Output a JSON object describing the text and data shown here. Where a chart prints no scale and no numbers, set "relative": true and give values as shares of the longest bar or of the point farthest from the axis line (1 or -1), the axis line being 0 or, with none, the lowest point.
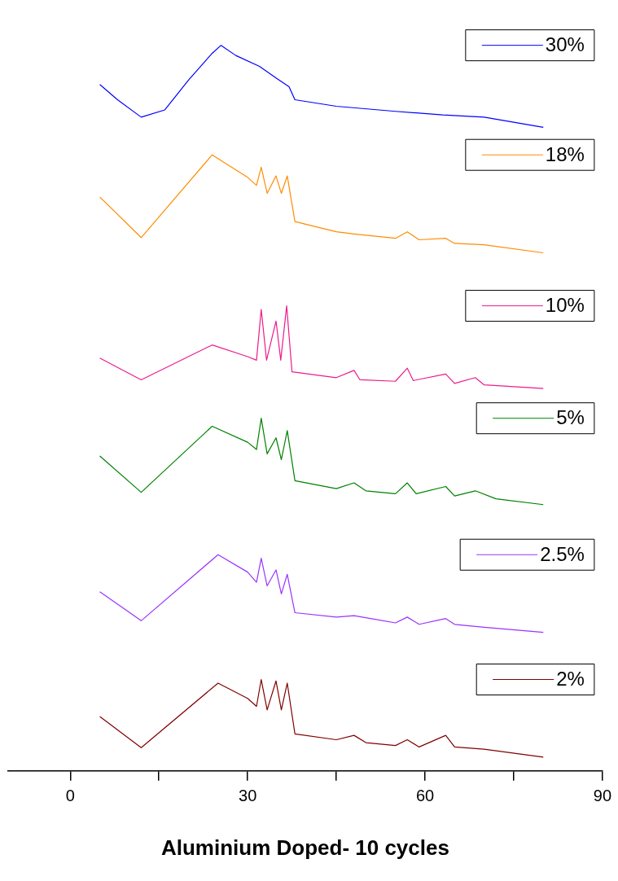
{
  "chart_data": {
    "type": "line",
    "relative": true,
    "xlabel": "Aluminium Doped- 10 cycles",
    "xlim": [
      -10.5,
      90
    ],
    "xticks": [
      0,
      {
        "value": 15,
        "label": null
      },
      30,
      {
        "value": 45,
        "label": null
      },
      60,
      {
        "value": 75,
        "label": null
      },
      90
    ],
    "tick_labels": "x",
    "grid": false,
    "legend": "right",
    "marker": "none",
    "line_style": "solid",
    "series": [
      {
        "name": "30%",
        "color": "#0000ff",
        "x": [
          5,
          8,
          12,
          16,
          20,
          24,
          25.5,
          28,
          32,
          35,
          37,
          38,
          45,
          55,
          63,
          70,
          80
        ],
        "values": [
          0.946,
          0.925,
          0.901,
          0.911,
          0.952,
          0.989,
          1.0,
          0.986,
          0.971,
          0.954,
          0.943,
          0.925,
          0.916,
          0.909,
          0.904,
          0.901,
          0.887
        ]
      },
      {
        "name": "18%",
        "color": "#ff8c00",
        "x": [
          5,
          12,
          24,
          30,
          31.5,
          32.3,
          33.3,
          34.8,
          35.7,
          36.7,
          38,
          45,
          48,
          55,
          57,
          59,
          63.5,
          65,
          70,
          80
        ],
        "values": [
          0.791,
          0.735,
          0.849,
          0.818,
          0.807,
          0.832,
          0.796,
          0.82,
          0.796,
          0.82,
          0.757,
          0.743,
          0.74,
          0.734,
          0.743,
          0.732,
          0.734,
          0.727,
          0.725,
          0.714
        ]
      },
      {
        "name": "10%",
        "color": "#ec1c8c",
        "x": [
          5,
          12,
          24,
          30,
          31.5,
          32.3,
          33.2,
          34.8,
          35.6,
          36.6,
          37.5,
          45,
          48,
          49,
          55,
          57,
          58,
          63.5,
          65,
          68.5,
          70,
          80
        ],
        "values": [
          0.569,
          0.539,
          0.587,
          0.571,
          0.566,
          0.636,
          0.566,
          0.62,
          0.566,
          0.641,
          0.55,
          0.542,
          0.552,
          0.539,
          0.537,
          0.555,
          0.538,
          0.547,
          0.534,
          0.542,
          0.532,
          0.527
        ]
      },
      {
        "name": "5%",
        "color": "#008000",
        "x": [
          5,
          12,
          24,
          30,
          31.5,
          32.3,
          33.3,
          34.8,
          35.7,
          36.7,
          38,
          45,
          48,
          50,
          55,
          57,
          58.5,
          63.5,
          65,
          68.5,
          72,
          80
        ],
        "values": [
          0.434,
          0.384,
          0.475,
          0.453,
          0.443,
          0.486,
          0.437,
          0.459,
          0.429,
          0.469,
          0.4,
          0.389,
          0.397,
          0.386,
          0.382,
          0.397,
          0.382,
          0.392,
          0.379,
          0.386,
          0.375,
          0.367
        ]
      },
      {
        "name": "2.5%",
        "color": "#9933ff",
        "x": [
          5,
          12,
          25,
          30,
          31.5,
          32.3,
          33.3,
          34.8,
          35.7,
          36.7,
          38,
          45,
          48,
          55,
          57,
          59,
          63.5,
          65,
          70,
          80
        ],
        "values": [
          0.247,
          0.207,
          0.298,
          0.274,
          0.26,
          0.293,
          0.255,
          0.277,
          0.244,
          0.271,
          0.218,
          0.212,
          0.214,
          0.204,
          0.212,
          0.202,
          0.21,
          0.202,
          0.198,
          0.191
        ]
      },
      {
        "name": "2%",
        "color": "#800000",
        "x": [
          5,
          12,
          25,
          30,
          31.5,
          32.3,
          33.3,
          34.8,
          35.7,
          36.7,
          38,
          45,
          48,
          50,
          55,
          57,
          59,
          63.5,
          65,
          70,
          80
        ],
        "values": [
          0.075,
          0.032,
          0.121,
          0.1,
          0.089,
          0.126,
          0.084,
          0.124,
          0.084,
          0.121,
          0.051,
          0.043,
          0.049,
          0.039,
          0.035,
          0.043,
          0.033,
          0.049,
          0.033,
          0.03,
          0.019
        ]
      }
    ]
  }
}
